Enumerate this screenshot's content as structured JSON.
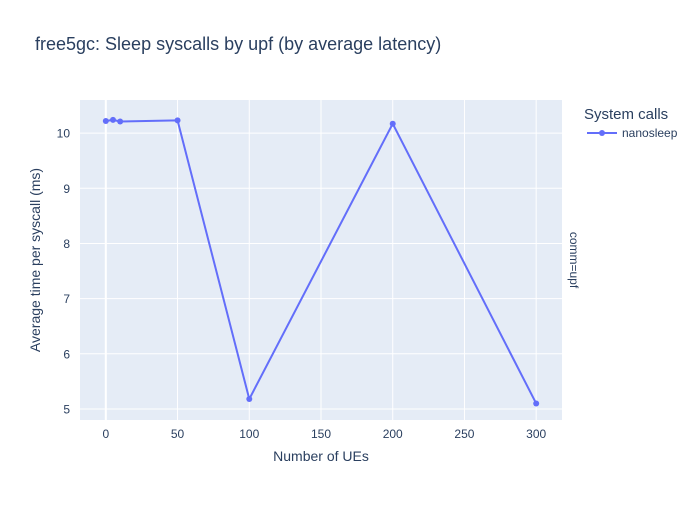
{
  "chart_data": {
    "type": "line",
    "title": "free5gc: Sleep syscalls by upf (by average latency)",
    "xlabel": "Number of UEs",
    "ylabel": "Average time per syscall (ms)",
    "facet_label": "comm=upf",
    "legend": {
      "title": "System calls",
      "placement": "right"
    },
    "xlim": [
      -18,
      318
    ],
    "ylim": [
      4.8,
      10.6
    ],
    "x_ticks": [
      0,
      50,
      100,
      150,
      200,
      250,
      300
    ],
    "y_ticks": [
      5,
      6,
      7,
      8,
      9,
      10
    ],
    "grid": true,
    "series": [
      {
        "name": "nanosleep",
        "color": "#636efa",
        "x": [
          0,
          5,
          10,
          50,
          100,
          200,
          300
        ],
        "y": [
          10.22,
          10.24,
          10.21,
          10.23,
          5.18,
          10.17,
          5.1
        ]
      }
    ]
  },
  "colors": {
    "plot_background": "#e5ecf6",
    "grid": "#ffffff",
    "text": "#2a3f5f"
  }
}
